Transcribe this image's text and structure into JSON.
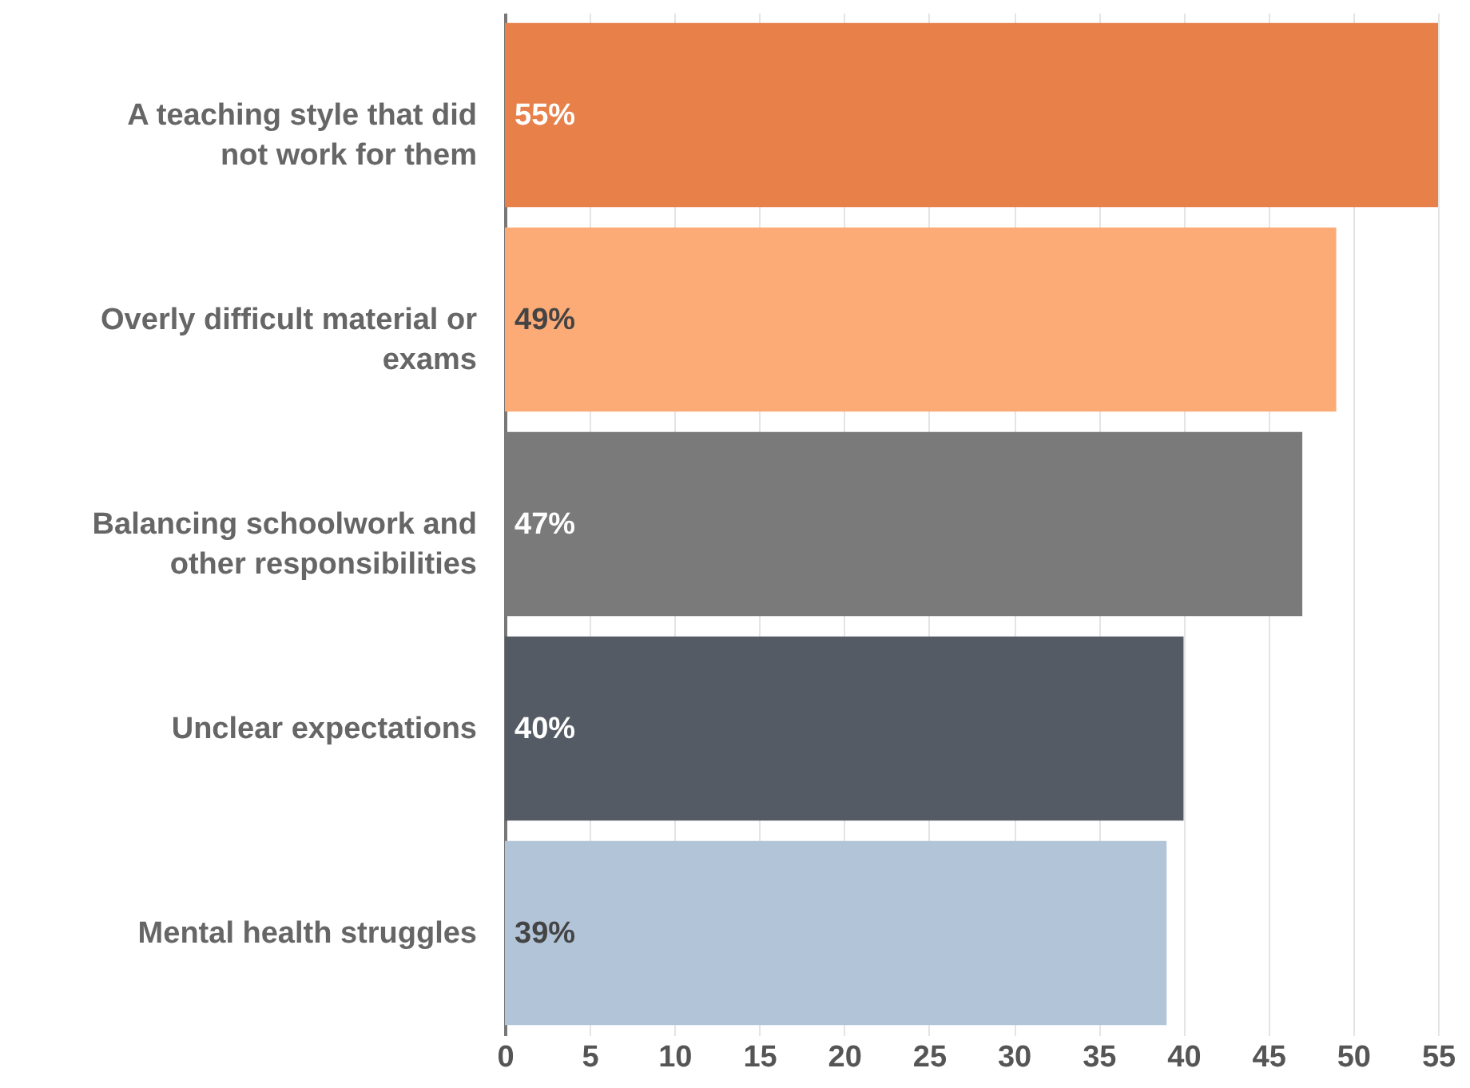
{
  "chart_data": {
    "type": "bar",
    "orientation": "horizontal",
    "categories": [
      "A teaching style that did not work for them",
      "Overly difficult material or exams",
      "Balancing schoolwork and other responsibilities",
      "Unclear expectations",
      "Mental health struggles"
    ],
    "values": [
      55,
      49,
      47,
      40,
      39
    ],
    "colors": [
      "#e8804a",
      "#fcab76",
      "#7a7a7a",
      "#545b65",
      "#b2c4d7"
    ],
    "value_labels": [
      "55%",
      "49%",
      "47%",
      "40%",
      "39%"
    ],
    "xlim": [
      0,
      55
    ],
    "xticks": [
      0,
      5,
      10,
      15,
      20,
      25,
      30,
      35,
      40,
      45,
      50,
      55
    ],
    "grid": "x"
  }
}
